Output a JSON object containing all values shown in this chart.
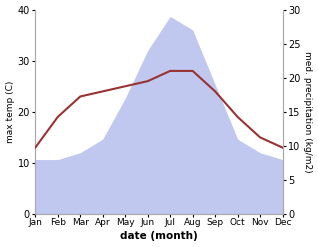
{
  "months": [
    "Jan",
    "Feb",
    "Mar",
    "Apr",
    "May",
    "Jun",
    "Jul",
    "Aug",
    "Sep",
    "Oct",
    "Nov",
    "Dec"
  ],
  "temp": [
    13,
    19,
    23,
    24,
    25,
    26,
    28,
    28,
    24,
    19,
    15,
    13
  ],
  "precip": [
    8,
    8,
    9,
    11,
    17,
    24,
    29,
    27,
    19,
    11,
    9,
    8
  ],
  "temp_color": "#993333",
  "precip_color": "#c0c8f0",
  "ylabel_left": "max temp (C)",
  "ylabel_right": "med. precipitation (kg/m2)",
  "xlabel": "date (month)",
  "ylim_left": [
    0,
    40
  ],
  "ylim_right": [
    0,
    30
  ],
  "yticks_left": [
    0,
    10,
    20,
    30,
    40
  ],
  "yticks_right": [
    0,
    5,
    10,
    15,
    20,
    25,
    30
  ],
  "spine_color": "#aaaaaa"
}
